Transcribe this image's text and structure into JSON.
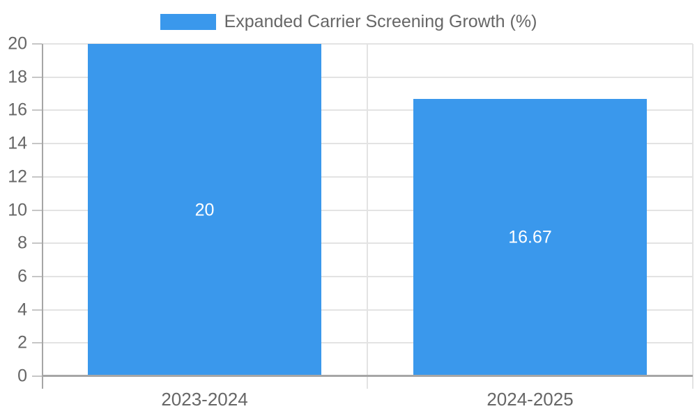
{
  "chart_data": {
    "type": "bar",
    "title": "",
    "legend": [
      "Expanded Carrier Screening Growth (%)"
    ],
    "legend_position": "top-center",
    "categories": [
      "2023-2024",
      "2024-2025"
    ],
    "series": [
      {
        "name": "Expanded Carrier Screening Growth (%)",
        "values": [
          20,
          16.67
        ]
      }
    ],
    "value_labels": [
      "20",
      "16.67"
    ],
    "xlabel": "",
    "ylabel": "",
    "ylim": [
      0,
      20
    ],
    "ytick_step": 2,
    "grid": true,
    "layout_hints": {
      "bar_width_fraction": 0.717,
      "value_labels_inside": true
    },
    "colors": {
      "bar": "#3A98EC",
      "grid": "#E3E3E3",
      "axis": "#A6A6A6",
      "tick": "#C6C6C6",
      "label_text": "#666666",
      "value_label_text": "#FFFFFF",
      "background": "#FFFFFF"
    }
  }
}
